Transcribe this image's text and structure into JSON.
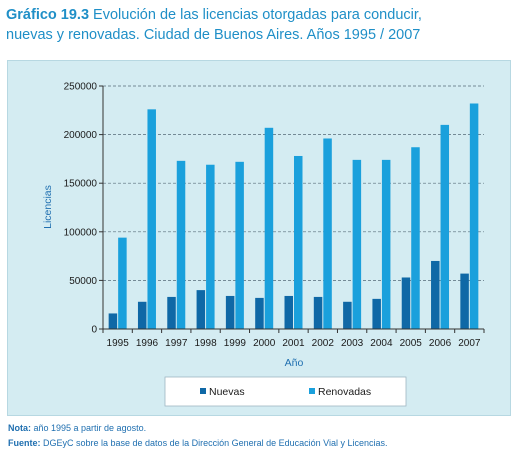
{
  "header": {
    "number": "Gráfico 19.3",
    "text_line1": " Evolución de las licencias otorgadas para conducir,",
    "text_line2": "nuevas y renovadas. Ciudad de Buenos Aires. Años 1995 / 2007"
  },
  "footnotes": {
    "nota_label": "Nota:",
    "nota_text": " año 1995 a partir de agosto.",
    "fuente_label": "Fuente:",
    "fuente_text": " DGEyC sobre la base de datos de la Dirección General de Educación Vial y Licencias."
  },
  "colors": {
    "nuevas": "#0f68a6",
    "renovadas": "#1aa0dc",
    "panel": "#d4ecf2",
    "title": "#1f8fc7"
  },
  "chart_data": {
    "type": "bar",
    "xlabel": "Año",
    "ylabel": "Licencias",
    "ylim": [
      0,
      250000
    ],
    "yticks": [
      "0",
      "50000",
      "100000",
      "150000",
      "200000",
      "250000"
    ],
    "grid": "horizontal dashed",
    "legend_position": "bottom",
    "categories": [
      "1995",
      "1996",
      "1997",
      "1998",
      "1999",
      "2000",
      "2001",
      "2002",
      "2003",
      "2004",
      "2005",
      "2006",
      "2007"
    ],
    "series": [
      {
        "name": "Nuevas",
        "values": [
          16000,
          28000,
          33000,
          40000,
          34000,
          32000,
          34000,
          33000,
          28000,
          31000,
          53000,
          70000,
          57000
        ]
      },
      {
        "name": "Renovadas",
        "values": [
          94000,
          226000,
          173000,
          169000,
          172000,
          207000,
          178000,
          196000,
          174000,
          174000,
          187000,
          210000,
          232000
        ]
      }
    ]
  }
}
